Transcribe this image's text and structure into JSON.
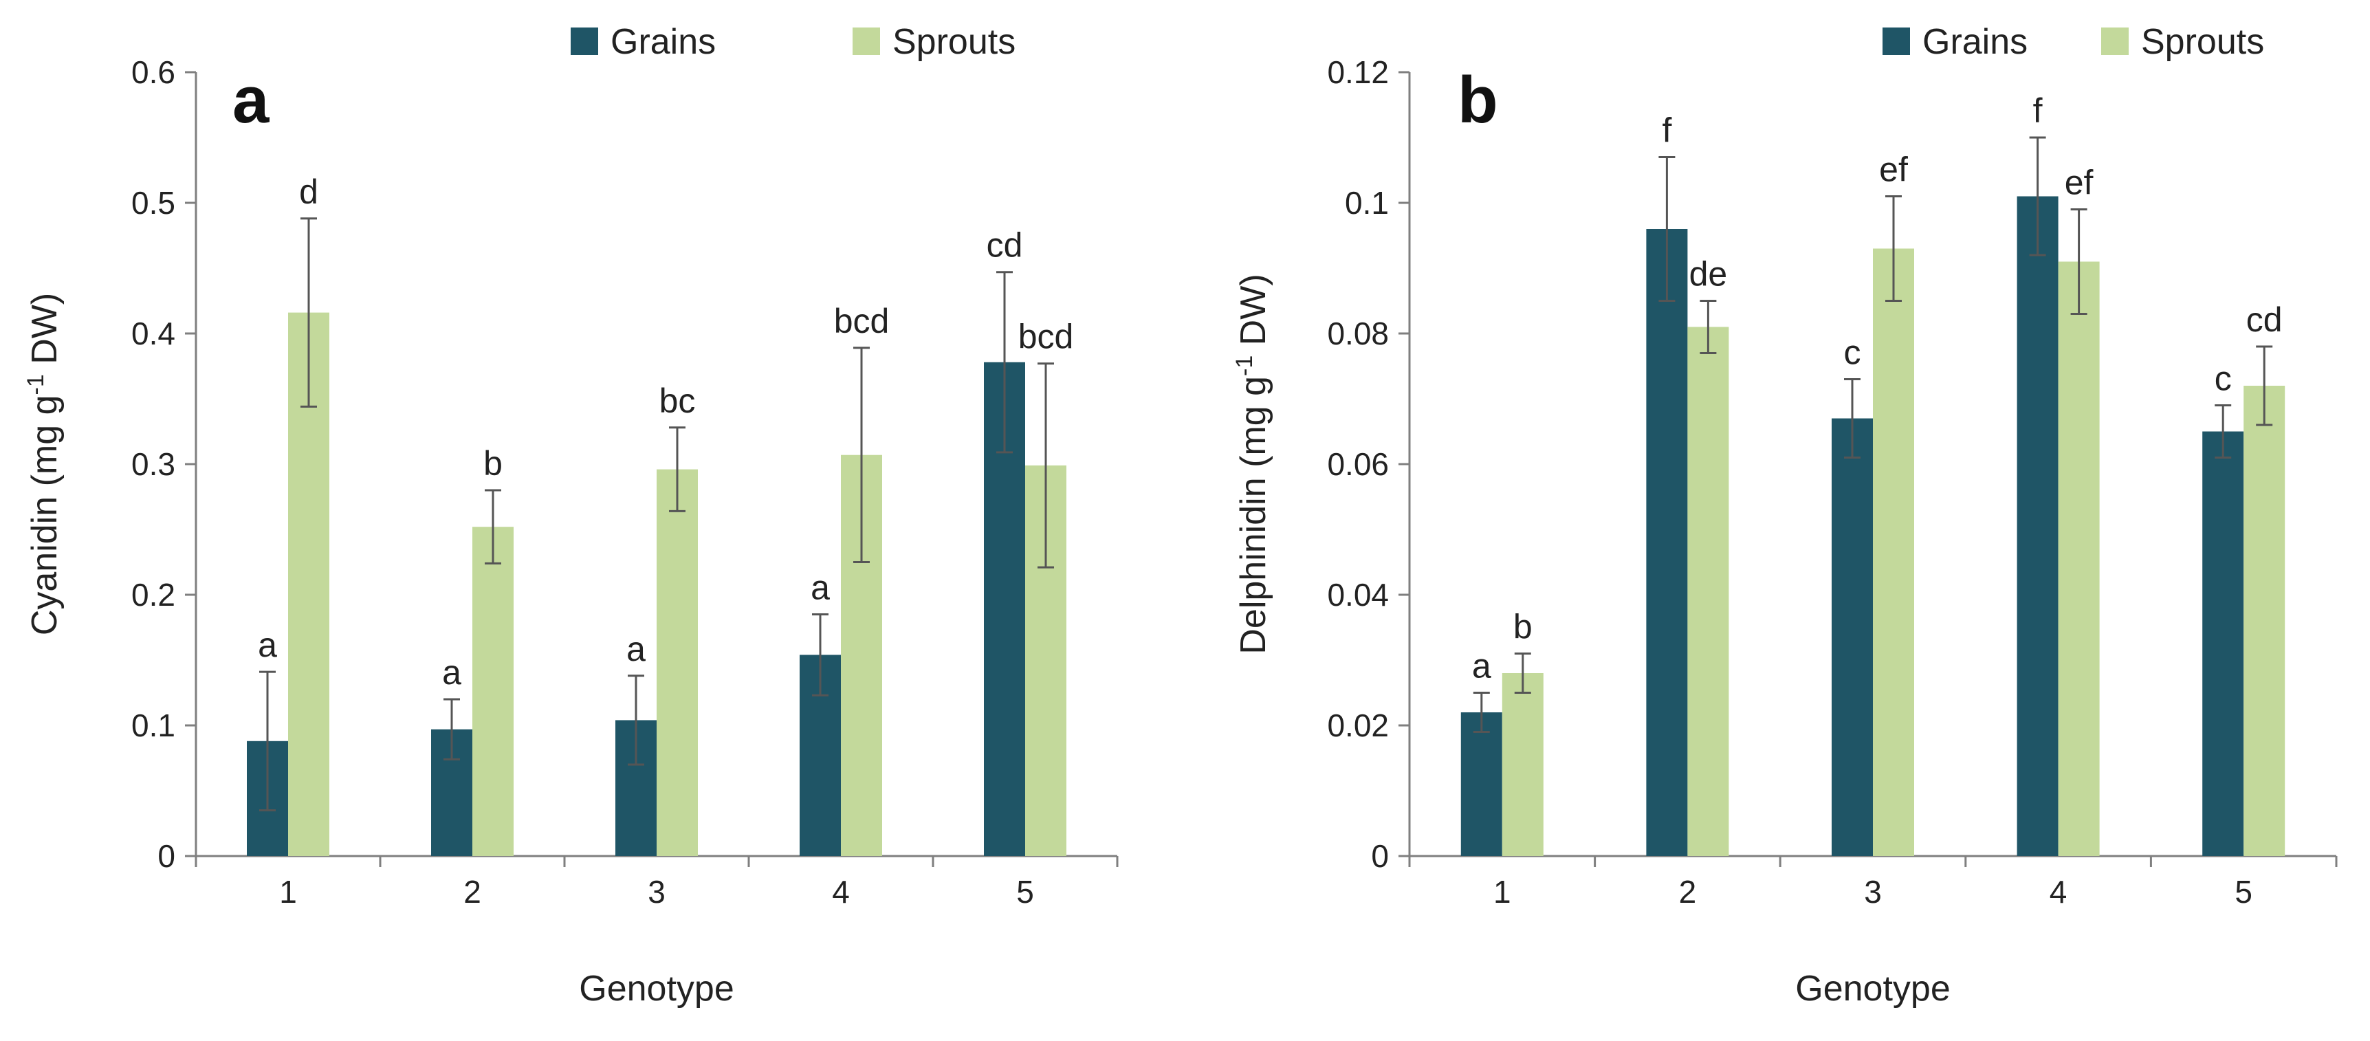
{
  "chart_data": [
    {
      "type": "bar",
      "panel_label": "a",
      "categories": [
        "1",
        "2",
        "3",
        "4",
        "5"
      ],
      "xlabel": "Genotype",
      "ylabel_main": "Cyanidin (mg g",
      "ylabel_sup": "-1",
      "ylabel_tail": " DW)",
      "ylim": [
        0,
        0.6
      ],
      "yticks": [
        "0",
        "0.1",
        "0.2",
        "0.3",
        "0.4",
        "0.5",
        "0.6"
      ],
      "legend_position": "top-center",
      "series": [
        {
          "name": "Grains",
          "color": "#1f5566",
          "values": [
            0.088,
            0.097,
            0.104,
            0.154,
            0.378
          ],
          "errors": [
            0.053,
            0.023,
            0.034,
            0.031,
            0.069
          ],
          "letters": [
            "a",
            "a",
            "a",
            "a",
            "cd"
          ]
        },
        {
          "name": "Sprouts",
          "color": "#c3d99b",
          "values": [
            0.416,
            0.252,
            0.296,
            0.307,
            0.299
          ],
          "errors": [
            0.072,
            0.028,
            0.032,
            0.082,
            0.078
          ],
          "letters": [
            "d",
            "b",
            "bc",
            "bcd",
            "bcd"
          ]
        }
      ]
    },
    {
      "type": "bar",
      "panel_label": "b",
      "categories": [
        "1",
        "2",
        "3",
        "4",
        "5"
      ],
      "xlabel": "Genotype",
      "ylabel_main": "Delphinidin (mg g",
      "ylabel_sup": "-1",
      "ylabel_tail": " DW)",
      "ylim": [
        0,
        0.12
      ],
      "yticks": [
        "0",
        "0.02",
        "0.04",
        "0.06",
        "0.08",
        "0.1",
        "0.12"
      ],
      "legend_position": "top-right",
      "series": [
        {
          "name": "Grains",
          "color": "#1f5566",
          "values": [
            0.022,
            0.096,
            0.067,
            0.101,
            0.065
          ],
          "errors": [
            0.003,
            0.011,
            0.006,
            0.009,
            0.004
          ],
          "letters": [
            "a",
            "f",
            "c",
            "f",
            "c"
          ]
        },
        {
          "name": "Sprouts",
          "color": "#c3d99b",
          "values": [
            0.028,
            0.081,
            0.093,
            0.091,
            0.072
          ],
          "errors": [
            0.003,
            0.004,
            0.008,
            0.008,
            0.006
          ],
          "letters": [
            "b",
            "de",
            "ef",
            "ef",
            "cd"
          ]
        }
      ]
    }
  ]
}
